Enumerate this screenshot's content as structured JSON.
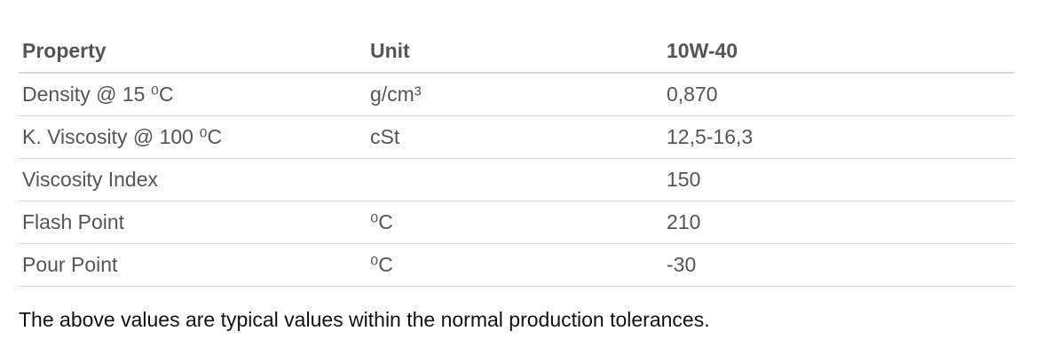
{
  "table": {
    "headers": [
      "Property",
      "Unit",
      "10W-40"
    ],
    "rows": [
      {
        "property": "Density @ 15 ⁰C",
        "unit": "g/cm³",
        "value": "0,870"
      },
      {
        "property": "K. Viscosity @ 100 ⁰C",
        "unit": "cSt",
        "value": "12,5-16,3"
      },
      {
        "property": "Viscosity Index",
        "unit": "",
        "value": "150"
      },
      {
        "property": "Flash Point",
        "unit": "⁰C",
        "value": "210"
      },
      {
        "property": "Pour Point",
        "unit": "⁰C",
        "value": "-30"
      }
    ]
  },
  "note": "The above values are typical values within the normal production tolerances."
}
